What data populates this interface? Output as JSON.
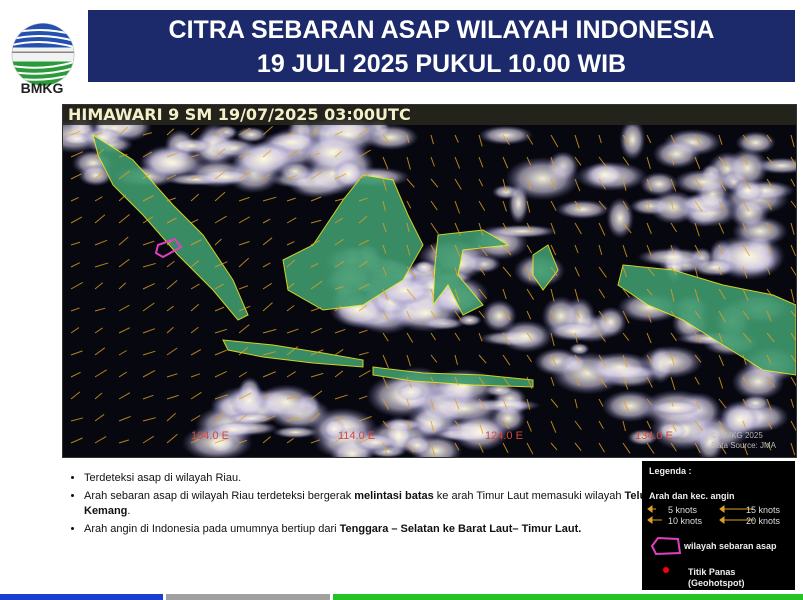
{
  "logo": {
    "text": "BMKG"
  },
  "header": {
    "line1": "CITRA SEBARAN ASAP WILAYAH INDONESIA",
    "line2": "19 JULI 2025 PUKUL 10.00 WIB"
  },
  "map": {
    "title": "HIMAWARI 9 SM  19/07/2025  03:00UTC",
    "longitudes": [
      "104.0 E",
      "114.0 E",
      "124.0 E",
      "134.0 E"
    ],
    "credit_line1": "© BMKG 2025",
    "credit_line2": "Data Source: JMA",
    "colors": {
      "land": "#3f9a6e",
      "coast": "#e8e820",
      "wind": "#e0a020",
      "smoke": "#e040c0"
    }
  },
  "notes": {
    "b1": "Terdeteksi asap di wilayah Riau.",
    "b2_pre": "Arah sebaran asap di wilayah Riau terdeteksi bergerak ",
    "b2_bold1": "melintasi batas",
    "b2_mid": " ke arah Timur Laut memasuki wilayah ",
    "b2_bold2": "Teluk Kemang",
    "b2_post": ".",
    "b3_pre": "Arah angin di Indonesia pada umumnya bertiup dari ",
    "b3_bold": "Tenggara – Selatan ke Barat Laut– Timur Laut."
  },
  "legend": {
    "title": "Legenda :",
    "wind_title": "Arah dan kec. angin",
    "k5": "5 knots",
    "k10": "10 knots",
    "k15": "15 knots",
    "k20": "20 knots",
    "smoke": "wilayah sebaran asap",
    "hotspot1": "Titik Panas",
    "hotspot2": "(Geohotspot)"
  },
  "footer_colors": [
    "#1a3fd0",
    "#a0a0a0",
    "#22c322"
  ]
}
